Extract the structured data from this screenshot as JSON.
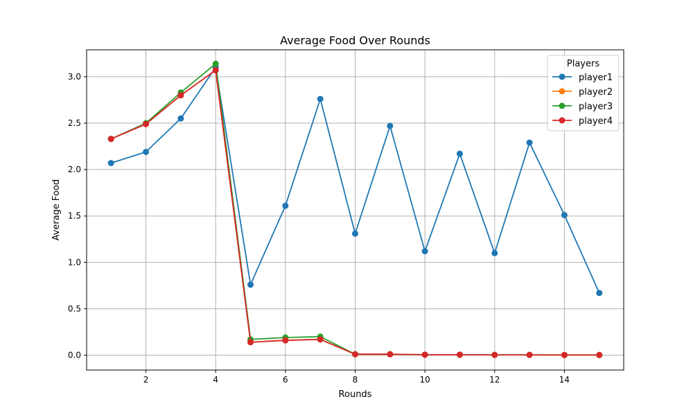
{
  "chart_data": {
    "type": "line",
    "title": "Average Food Over Rounds",
    "xlabel": "Rounds",
    "ylabel": "Average Food",
    "xlim": [
      0.3,
      15.7
    ],
    "ylim": [
      -0.16,
      3.29
    ],
    "xticks": [
      2,
      4,
      6,
      8,
      10,
      12,
      14
    ],
    "yticks": [
      0.0,
      0.5,
      1.0,
      1.5,
      2.0,
      2.5,
      3.0
    ],
    "xtick_labels": [
      "2",
      "4",
      "6",
      "8",
      "10",
      "12",
      "14"
    ],
    "ytick_labels": [
      "0.0",
      "0.5",
      "1.0",
      "1.5",
      "2.0",
      "2.5",
      "3.0"
    ],
    "grid": true,
    "legend": {
      "title": "Players",
      "position": "top-right"
    },
    "x": [
      1,
      2,
      3,
      4,
      5,
      6,
      7,
      8,
      9,
      10,
      11,
      12,
      13,
      14,
      15
    ],
    "series": [
      {
        "name": "player1",
        "color": "#1f77b4",
        "values": [
          2.07,
          2.19,
          2.55,
          3.1,
          0.76,
          1.61,
          2.76,
          1.31,
          2.47,
          1.12,
          2.17,
          1.1,
          2.29,
          1.51,
          0.67
        ]
      },
      {
        "name": "player2",
        "color": "#ff7f0e",
        "values": [
          2.33,
          2.49,
          2.8,
          3.07,
          0.14,
          0.16,
          0.17,
          0.01,
          0.01,
          0.005,
          0.005,
          0.003,
          0.003,
          0.002,
          0.002
        ]
      },
      {
        "name": "player3",
        "color": "#2ca02c",
        "values": [
          2.33,
          2.5,
          2.83,
          3.14,
          0.17,
          0.19,
          0.2,
          0.01,
          0.01,
          0.005,
          0.005,
          0.003,
          0.003,
          0.002,
          0.002
        ]
      },
      {
        "name": "player4",
        "color": "#d62728",
        "values": [
          2.33,
          2.49,
          2.8,
          3.07,
          0.14,
          0.16,
          0.17,
          0.01,
          0.01,
          0.005,
          0.005,
          0.003,
          0.003,
          0.002,
          0.002
        ]
      }
    ]
  }
}
